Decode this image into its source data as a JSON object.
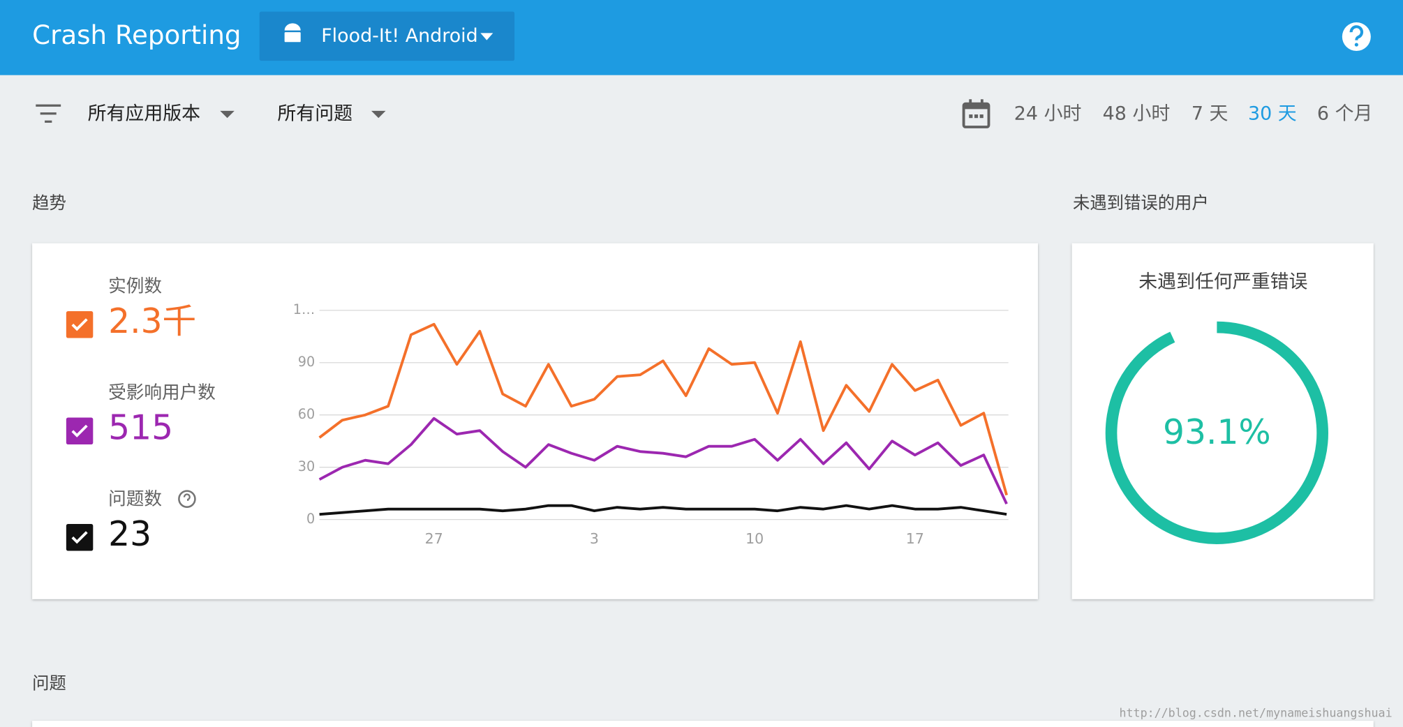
{
  "header": {
    "title": "Crash Reporting",
    "app": "Flood-It! Android"
  },
  "filters": {
    "version": "所有应用版本",
    "issues": "所有问题",
    "ranges": [
      "24 小时",
      "48 小时",
      "7 天",
      "30 天",
      "6 个月"
    ],
    "active_range": 3
  },
  "trend": {
    "heading": "趋势",
    "chart": {
      "type": "line",
      "categories": [
        null,
        null,
        null,
        null,
        null,
        "27",
        null,
        null,
        null,
        null,
        null,
        null,
        "3",
        null,
        null,
        null,
        null,
        null,
        null,
        "10",
        null,
        null,
        null,
        null,
        null,
        null,
        "17",
        null,
        null,
        null,
        null
      ],
      "ylim": [
        0,
        120
      ],
      "yticks": [
        0,
        30,
        60,
        90,
        {
          "value": 120,
          "label": "1…"
        }
      ],
      "grid": true,
      "series": [
        {
          "name": "实例数",
          "total_label": "2.3千",
          "color": "#f4702a",
          "values": [
            47,
            57,
            60,
            65,
            106,
            112,
            89,
            108,
            72,
            65,
            89,
            65,
            69,
            82,
            83,
            91,
            71,
            98,
            89,
            90,
            61,
            102,
            51,
            77,
            62,
            89,
            74,
            80,
            54,
            61,
            14
          ]
        },
        {
          "name": "受影响用户数",
          "total_label": "515",
          "color": "#9c27b0",
          "values": [
            23,
            30,
            34,
            32,
            43,
            58,
            49,
            51,
            39,
            30,
            43,
            38,
            34,
            42,
            39,
            38,
            36,
            42,
            42,
            46,
            34,
            46,
            32,
            44,
            29,
            45,
            37,
            44,
            31,
            37,
            9
          ]
        },
        {
          "name": "问题数",
          "total_label": "23",
          "color": "#111111",
          "values": [
            3,
            4,
            5,
            6,
            6,
            6,
            6,
            6,
            5,
            6,
            8,
            8,
            5,
            7,
            6,
            7,
            6,
            6,
            6,
            6,
            5,
            7,
            6,
            8,
            6,
            8,
            6,
            6,
            7,
            5,
            3
          ]
        }
      ]
    }
  },
  "crash_free": {
    "heading": "未遇到错误的用户",
    "subtitle": "未遇到任何严重错误",
    "value": 93.1,
    "value_label": "93.1%",
    "color": "#1dbfa4"
  },
  "issues": {
    "heading": "问题"
  },
  "watermark": "http://blog.csdn.net/mynameishuangshuai"
}
